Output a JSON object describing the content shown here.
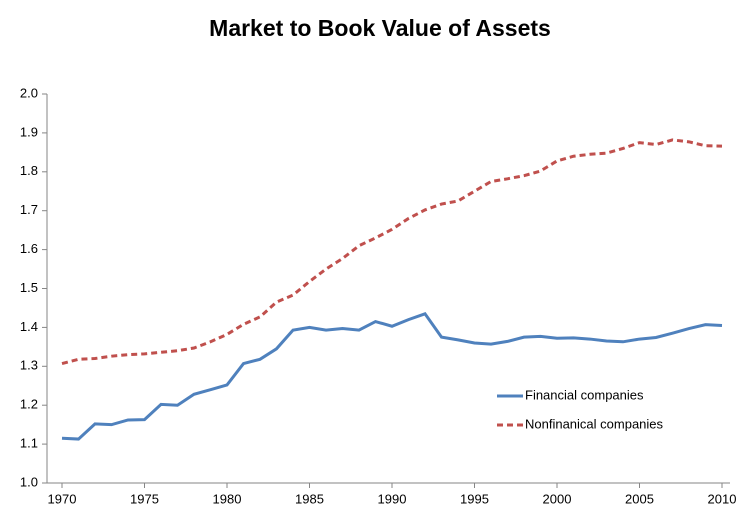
{
  "chart_data": {
    "type": "line",
    "title": "Market to Book Value of Assets",
    "x": [
      1970,
      1971,
      1972,
      1973,
      1974,
      1975,
      1976,
      1977,
      1978,
      1979,
      1980,
      1981,
      1982,
      1983,
      1984,
      1985,
      1986,
      1987,
      1988,
      1989,
      1990,
      1991,
      1992,
      1993,
      1994,
      1995,
      1996,
      1997,
      1998,
      1999,
      2000,
      2001,
      2002,
      2003,
      2004,
      2005,
      2006,
      2007,
      2008,
      2009,
      2010
    ],
    "series": [
      {
        "name": "Financial companies",
        "color": "#4f81bd",
        "dash": "solid",
        "values": [
          1.115,
          1.113,
          1.152,
          1.15,
          1.162,
          1.163,
          1.202,
          1.2,
          1.228,
          1.24,
          1.252,
          1.307,
          1.318,
          1.345,
          1.393,
          1.4,
          1.393,
          1.397,
          1.393,
          1.415,
          1.403,
          1.42,
          1.435,
          1.375,
          1.368,
          1.36,
          1.357,
          1.364,
          1.375,
          1.377,
          1.372,
          1.373,
          1.37,
          1.365,
          1.363,
          1.37,
          1.374,
          1.385,
          1.397,
          1.407,
          1.405
        ]
      },
      {
        "name": "Nonfinanical companies",
        "color": "#c0504d",
        "dash": "dashed",
        "values": [
          1.307,
          1.318,
          1.32,
          1.326,
          1.33,
          1.332,
          1.336,
          1.34,
          1.347,
          1.363,
          1.382,
          1.408,
          1.427,
          1.465,
          1.483,
          1.518,
          1.55,
          1.577,
          1.61,
          1.63,
          1.652,
          1.68,
          1.702,
          1.717,
          1.725,
          1.75,
          1.775,
          1.782,
          1.79,
          1.802,
          1.828,
          1.84,
          1.845,
          1.848,
          1.86,
          1.875,
          1.87,
          1.882,
          1.877,
          1.867,
          1.866
        ]
      }
    ],
    "xlim": [
      1970,
      2010
    ],
    "xticks": [
      1970,
      1975,
      1980,
      1985,
      1990,
      1995,
      2000,
      2005,
      2010
    ],
    "ylim": [
      1.0,
      2.0
    ],
    "yticks": [
      {
        "value": 1.0,
        "label": "1.0"
      },
      1.1,
      1.2,
      1.3,
      1.4,
      1.5,
      1.6,
      1.7,
      1.8,
      1.9,
      {
        "value": 2.0,
        "label": "2.0"
      }
    ],
    "grid": false,
    "legend": "lower right"
  }
}
